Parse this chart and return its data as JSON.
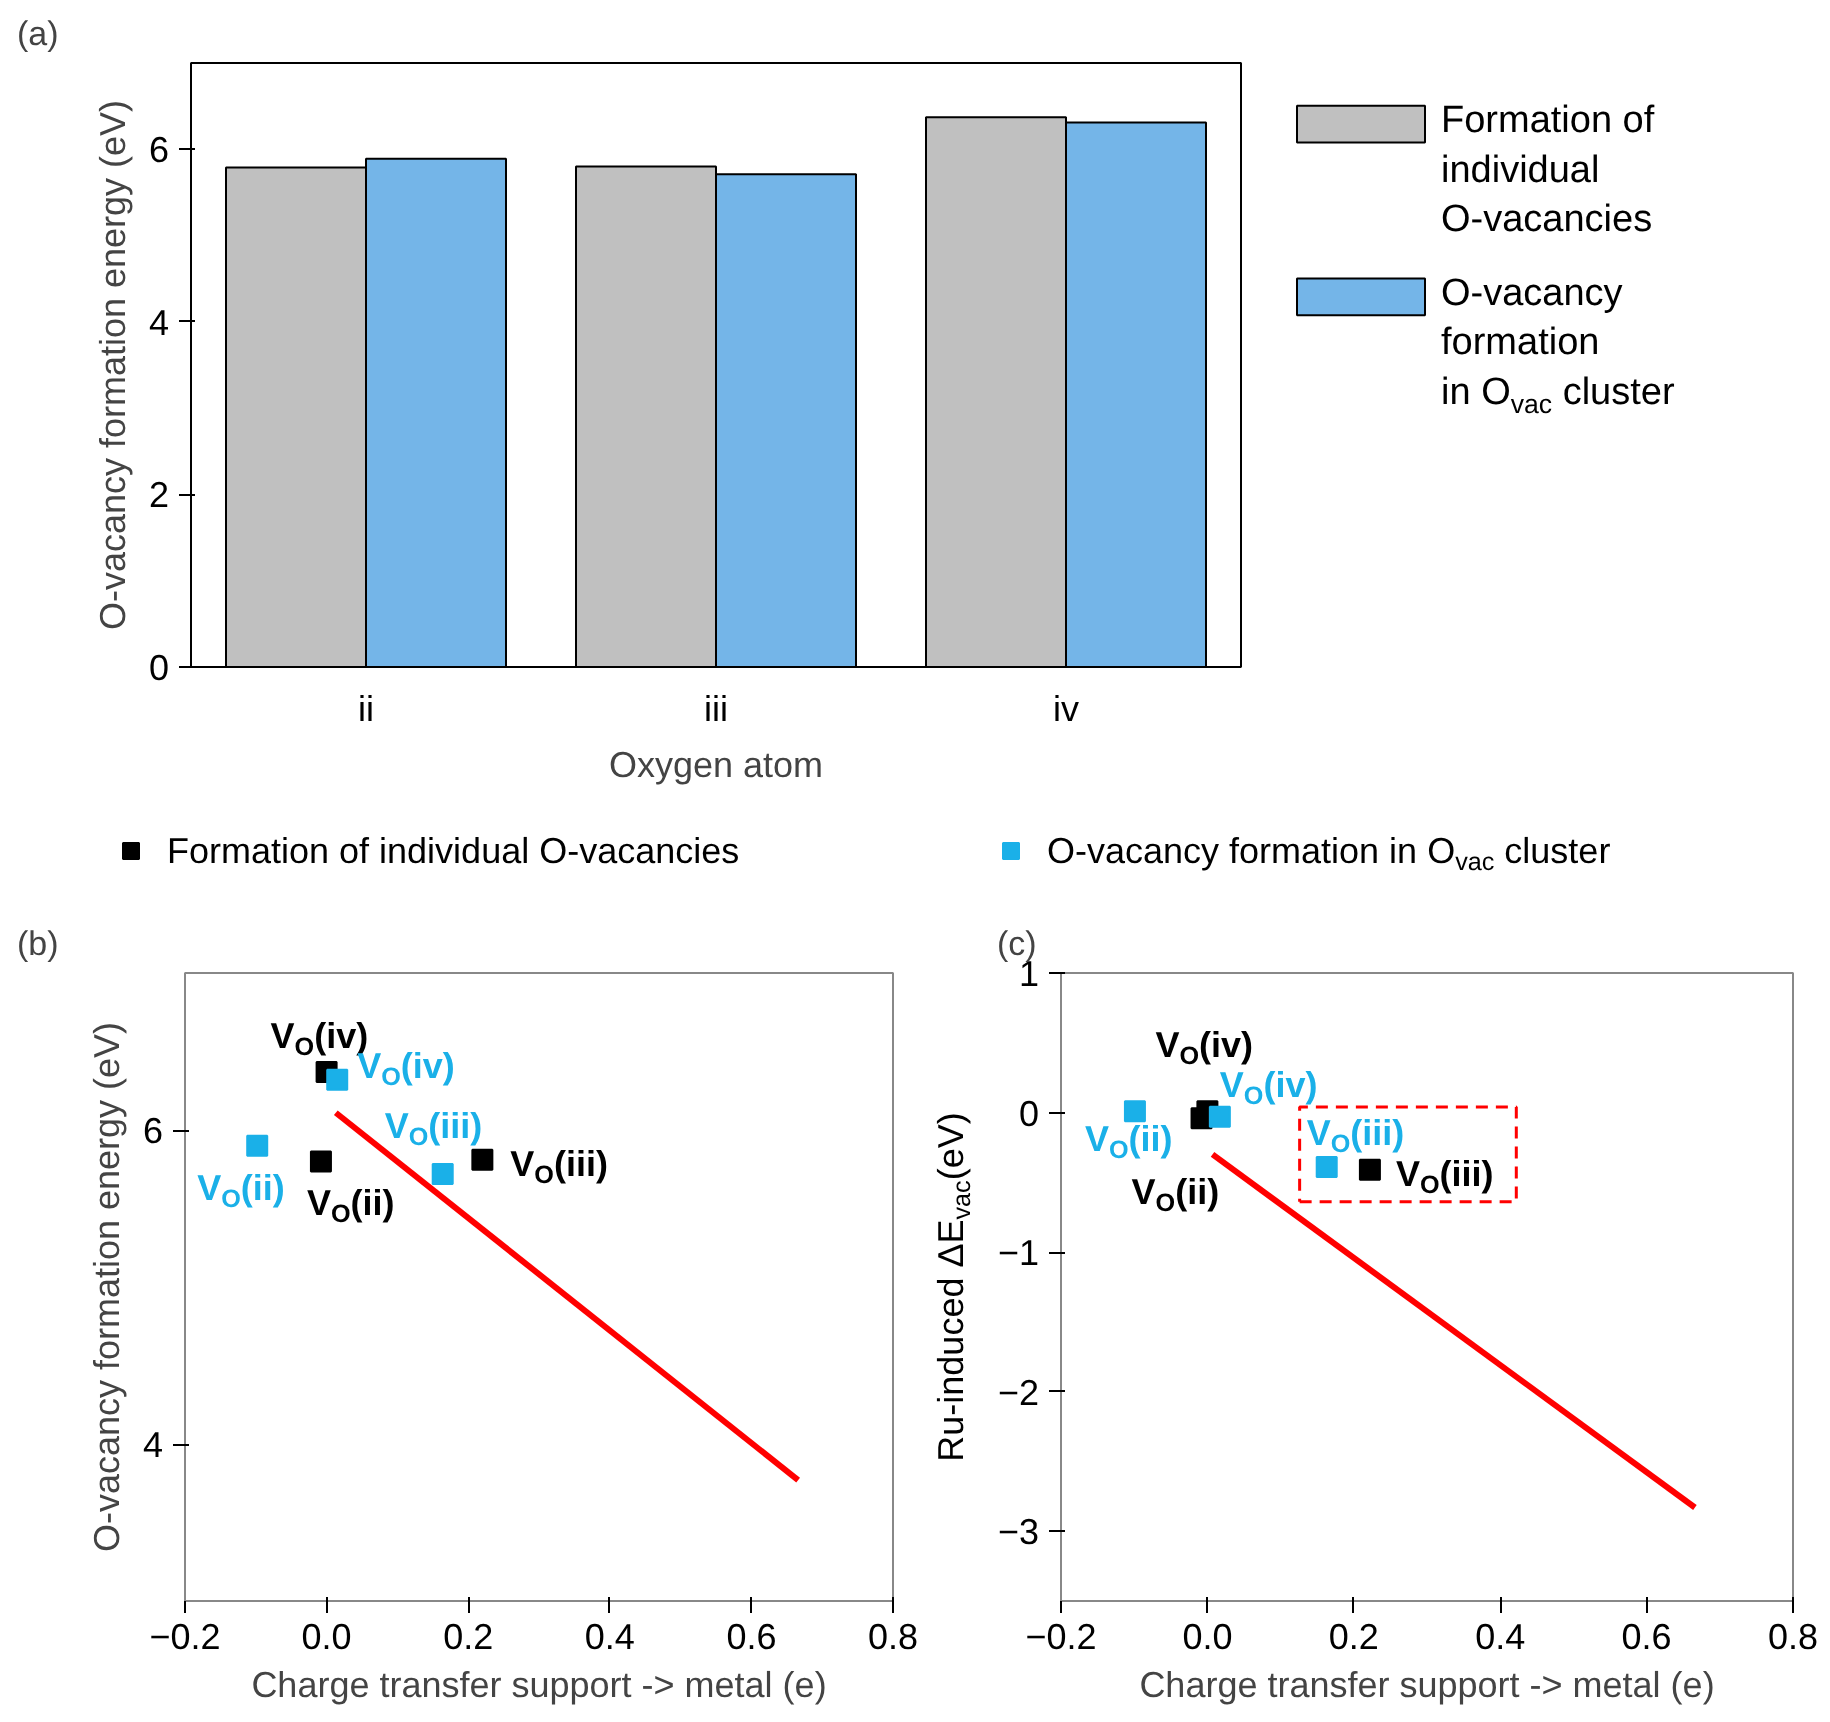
{
  "chart_data": [
    {
      "type": "bar",
      "title": "(a)",
      "categories": [
        "ii",
        "iii",
        "iv"
      ],
      "xlabel": "Oxygen atom",
      "ylabel": "O-vacancy formation energy (eV)",
      "ylim": [
        0,
        7
      ],
      "yticks": [
        0,
        2,
        4,
        6
      ],
      "grid": false,
      "legend": "right",
      "series": [
        {
          "name": "Formation of\n individual\nO-vacancies",
          "color": "#c0c0c0",
          "values": [
            5.79,
            5.8,
            6.37
          ]
        },
        {
          "name": "O-vacancy\nformation\nin O$_{vac}$ cluster",
          "color": "#74b5e8",
          "values": [
            5.89,
            5.71,
            6.31
          ]
        }
      ]
    },
    {
      "type": "scatter",
      "title": "(b)",
      "xlabel": "Charge transfer support -> metal (e)",
      "ylabel": "O-vacancy formation energy (eV)",
      "xlim": [
        -0.2,
        0.8
      ],
      "ylim": [
        3,
        7
      ],
      "xticks": [
        -0.2,
        {
          "value": 0,
          "label": "0.0"
        },
        0.2,
        0.4,
        0.6,
        0.8
      ],
      "yticks": [
        4,
        6
      ],
      "grid": false,
      "legend": "top",
      "series": [
        {
          "name": "Formation of individual O-vacancies",
          "color": "#000000",
          "marker": "square",
          "x": [
            -0.008,
            0.22,
            0.0
          ],
          "values": [
            5.8,
            5.81,
            6.37
          ]
        },
        {
          "name": "O-vacancy formation in O$_{vac}$ cluster",
          "color": "#1ab0e8",
          "marker": "square",
          "x": [
            -0.098,
            0.164,
            0.015
          ],
          "values": [
            5.9,
            5.72,
            6.32
          ]
        },
        {
          "type": "line",
          "color": "#ff0000",
          "x": [
            0.013,
            0.666
          ],
          "values": [
            6.11,
            3.77
          ]
        }
      ],
      "annotations": [
        {
          "text": "V$_{O}$(iv)",
          "x": 0.0,
          "y": 6.37
        },
        {
          "text": "V$_{O}$(iv)",
          "x": 0.015,
          "y": 6.32
        },
        {
          "text": "V$_{O}$(iii)",
          "x": 0.164,
          "y": 5.72
        },
        {
          "text": "V$_{O}$(iii)",
          "x": 0.22,
          "y": 5.81
        },
        {
          "text": "V$_{O}$(ii)",
          "x": -0.098,
          "y": 5.9
        },
        {
          "text": "V$_{O}$(ii)",
          "x": -0.008,
          "y": 5.8
        }
      ]
    },
    {
      "type": "scatter",
      "title": "(c)",
      "xlabel": "Charge transfer support -> metal (e)",
      "ylabel": "Ru-induced ΔE$_{vac}$(eV)",
      "xlim": [
        -0.2,
        0.8
      ],
      "ylim": [
        -3.5,
        1
      ],
      "xticks": [
        -0.2,
        {
          "value": 0,
          "label": "0.0"
        },
        0.2,
        0.4,
        0.6,
        0.8
      ],
      "yticks": [
        -3,
        -2,
        -1,
        0,
        1
      ],
      "grid": false,
      "series": [
        {
          "color": "#000000",
          "marker": "square",
          "x": [
            -0.008,
            0.222,
            0.0
          ],
          "values": [
            -0.04,
            -0.41,
            0.01
          ]
        },
        {
          "color": "#1ab0e8",
          "marker": "square",
          "x": [
            -0.099,
            0.163,
            0.017
          ],
          "values": [
            0.01,
            -0.39,
            -0.03
          ]
        },
        {
          "type": "line",
          "color": "#ff0000",
          "x": [
            0.007,
            0.666
          ],
          "values": [
            -0.3,
            -2.83
          ]
        }
      ],
      "annotations": [
        {
          "text": "V$_{O}$(iv)",
          "x": 0.0,
          "y": 0.01
        },
        {
          "text": "V$_{O}$(iv)",
          "x": 0.017,
          "y": -0.03
        },
        {
          "text": "V$_{O}$(ii)",
          "x": -0.099,
          "y": 0.01
        },
        {
          "text": "V$_{O}$(ii)",
          "x": -0.008,
          "y": -0.04
        },
        {
          "text": "V$_{O}$(iii)",
          "x": 0.163,
          "y": -0.39
        },
        {
          "text": "V$_{O}$(iii)",
          "x": 0.222,
          "y": -0.41
        }
      ]
    }
  ]
}
